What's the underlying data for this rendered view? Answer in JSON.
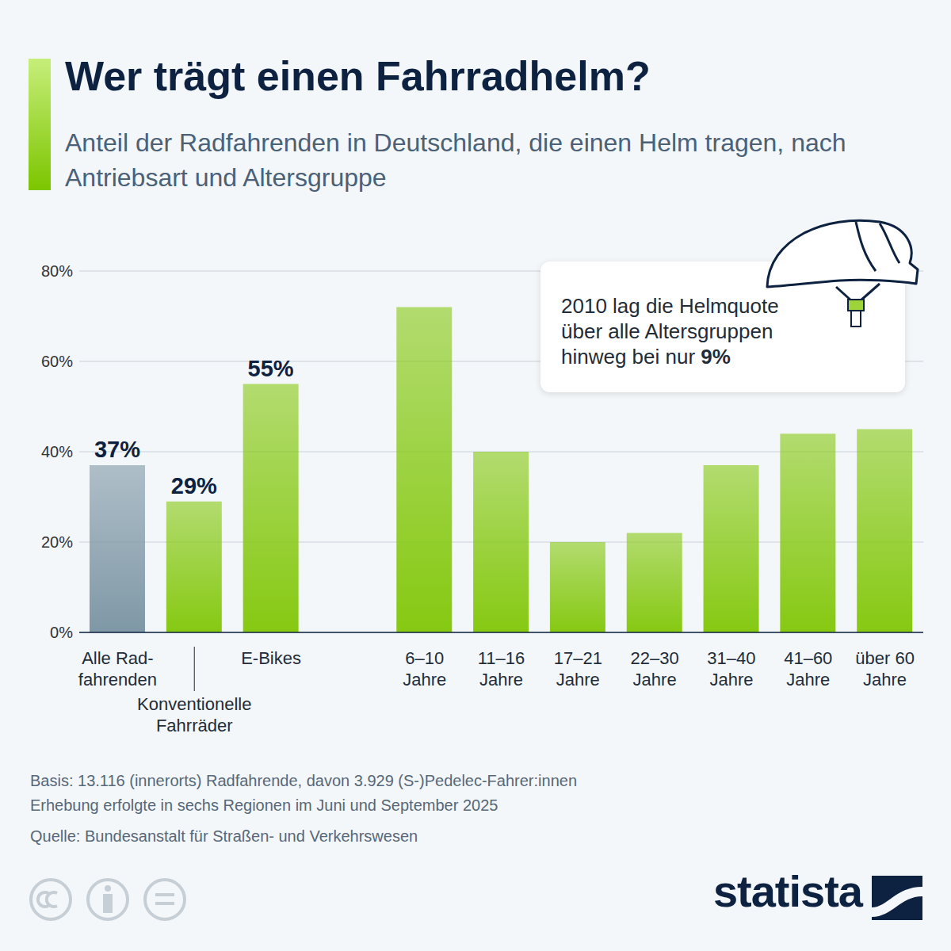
{
  "chart_data": {
    "type": "bar",
    "title": "Wer trägt einen Fahrradhelm?",
    "subtitle": "Anteil der Radfahrenden in Deutschland, die einen Helm tragen, nach Antriebsart und Altersgruppe",
    "categories": [
      "Alle Rad-\nfahrenden",
      "Konventionelle\nFahrräder",
      "E-Bikes",
      null,
      "6–10\nJahre",
      "11–16\nJahre",
      "17–21\nJahre",
      "22–30\nJahre",
      "31–40\nJahre",
      "41–60\nJahre",
      "über 60\nJahre"
    ],
    "values": [
      37,
      29,
      55,
      null,
      72,
      40,
      20,
      22,
      37,
      44,
      45
    ],
    "value_labels": [
      "37%",
      "29%",
      "55%",
      null,
      null,
      null,
      null,
      null,
      null,
      null,
      null
    ],
    "colors": [
      "#7f98a6",
      "#86c912",
      "#86c912",
      null,
      "#86c912",
      "#86c912",
      "#86c912",
      "#86c912",
      "#86c912",
      "#86c912",
      "#86c912"
    ],
    "ylim": [
      0,
      80
    ],
    "yticks": [
      {
        "value": 0,
        "label": "0%"
      },
      {
        "value": 20,
        "label": "20%"
      },
      {
        "value": 40,
        "label": "40%"
      },
      {
        "value": 60,
        "label": "60%"
      },
      {
        "value": 80,
        "label": "80%"
      }
    ],
    "grid": true,
    "data_labels": true,
    "annotation": {
      "lines": [
        "2010 lag die Helmquote",
        "über alle Altersgruppen",
        "hinweg bei nur"
      ],
      "highlight": "9%"
    },
    "notes": [
      "Basis: 13.116 (innerorts) Radfahrende, davon 3.929 (S-)Pedelec-Fahrer:innen",
      "Erhebung erfolgte in sechs Regionen im Juni und September 2025"
    ],
    "source": "Quelle: Bundesanstalt für Straßen- und Verkehrswesen",
    "logo": "statista"
  }
}
